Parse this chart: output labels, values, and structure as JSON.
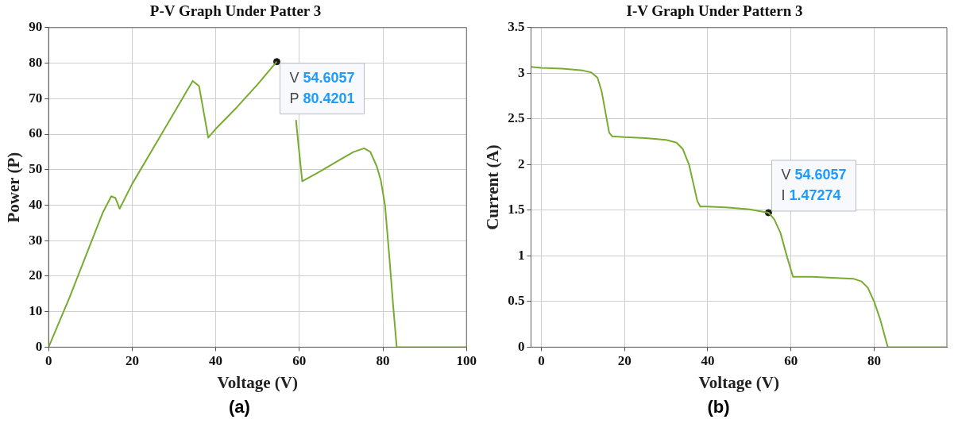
{
  "chart_data": [
    {
      "type": "line",
      "title": "P-V Graph Under Patter 3",
      "xlabel": "Voltage (V)",
      "ylabel": "Power (P)",
      "xlim": [
        0,
        100
      ],
      "xticks": [
        0,
        20,
        40,
        60,
        80,
        100
      ],
      "ylim": [
        0,
        90
      ],
      "yticks": [
        0,
        10,
        20,
        30,
        40,
        50,
        60,
        70,
        80,
        90
      ],
      "grid": true,
      "legend": false,
      "series": [
        {
          "color": "#77ac30",
          "x": [
            0,
            5,
            10,
            13,
            15,
            16,
            17,
            20,
            25,
            30,
            33,
            34.5,
            36,
            37,
            38.2,
            40,
            45,
            50,
            54.6057,
            56.5,
            57.5,
            58.7,
            59.2,
            59.7,
            60.7,
            65,
            70,
            73,
            75.5,
            77,
            78.5,
            79.5,
            80.5,
            81.5,
            82.5,
            83.3,
            100
          ],
          "values": [
            0,
            14,
            29,
            38,
            42.5,
            42,
            39,
            46,
            56,
            66,
            72,
            75,
            73.5,
            67,
            59,
            61.5,
            67.5,
            74,
            80.4201,
            null,
            null,
            null,
            64,
            58,
            46.7,
            49.5,
            53,
            55,
            56,
            55,
            51,
            47,
            40,
            26,
            11,
            0,
            0
          ]
        },
        {
          "type": "scatter",
          "color": "#1a1a1a",
          "marker": "circle",
          "x": [
            54.6057
          ],
          "values": [
            80.4201
          ]
        }
      ],
      "annotations": [
        {
          "text": "V 54.6057\nP 80.4201",
          "x": 54.6057,
          "y": 80.4201
        },
        "(a)"
      ]
    },
    {
      "type": "line",
      "title": "I-V Graph Under Pattern 3",
      "xlabel": "Voltage (V)",
      "ylabel": "Current (A)",
      "xlim": [
        -2.5,
        97.5
      ],
      "xticks": [
        0,
        20,
        40,
        60,
        80
      ],
      "ylim": [
        0,
        3.5
      ],
      "yticks": [
        0,
        0.5,
        1,
        1.5,
        2,
        2.5,
        3,
        3.5
      ],
      "grid": true,
      "legend": false,
      "series": [
        {
          "color": "#77ac30",
          "x": [
            -2.5,
            0,
            5,
            10,
            12,
            13.5,
            14.5,
            15.5,
            16.3,
            17,
            20,
            25,
            30,
            32.5,
            34,
            35.5,
            36.5,
            37.5,
            38.2,
            40,
            45,
            50,
            54.6057,
            56,
            57.5,
            59,
            60.5,
            65,
            70,
            75,
            77,
            78.5,
            80,
            81.5,
            83,
            83.3,
            97.5
          ],
          "values": [
            3.07,
            3.06,
            3.05,
            3.03,
            3.01,
            2.95,
            2.8,
            2.55,
            2.35,
            2.31,
            2.3,
            2.29,
            2.27,
            2.24,
            2.17,
            2.0,
            1.8,
            1.6,
            1.54,
            1.54,
            1.53,
            1.51,
            1.47274,
            1.4,
            1.25,
            1.0,
            0.77,
            0.77,
            0.76,
            0.75,
            0.72,
            0.65,
            0.5,
            0.3,
            0.05,
            0,
            0
          ]
        },
        {
          "type": "scatter",
          "color": "#1a1a1a",
          "marker": "circle",
          "x": [
            54.6057
          ],
          "values": [
            1.47274
          ]
        }
      ],
      "annotations": [
        {
          "text": "V 54.6057\nI 1.47274",
          "x": 54.6057,
          "y": 1.47274
        },
        "(b)"
      ]
    }
  ]
}
